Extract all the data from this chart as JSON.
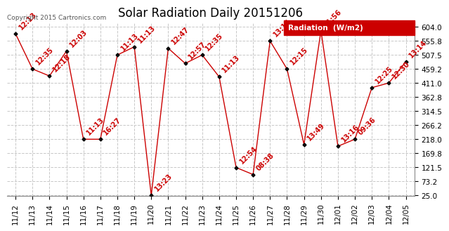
{
  "title": "Solar Radiation Daily 20151206",
  "copyright": "Copyright 2015 Cartronics.com",
  "background_color": "#ffffff",
  "plot_bg_color": "#ffffff",
  "grid_color": "#c8c8c8",
  "line_color": "#cc0000",
  "marker_color": "#000000",
  "legend_bg": "#cc0000",
  "legend_text": "Radiation  (W/m2)",
  "ylim_min": 25.0,
  "ylim_max": 604.0,
  "yticks": [
    25.0,
    73.2,
    121.5,
    169.8,
    218.0,
    266.2,
    314.5,
    362.8,
    411.0,
    459.2,
    507.5,
    555.8,
    604.0
  ],
  "dates": [
    "11/12",
    "11/13",
    "11/14",
    "11/15",
    "11/16",
    "11/17",
    "11/18",
    "11/19",
    "11/20",
    "11/21",
    "11/22",
    "11/23",
    "11/24",
    "11/25",
    "11/26",
    "11/27",
    "11/28",
    "11/29",
    "11/30",
    "12/01",
    "12/02",
    "12/03",
    "12/04",
    "12/05"
  ],
  "values": [
    580,
    459,
    435,
    520,
    218,
    218,
    507,
    535,
    25,
    530,
    478,
    507,
    432,
    121,
    97,
    555,
    459,
    200,
    590,
    194,
    218,
    395,
    411,
    484
  ],
  "labels": [
    "12:13",
    "12:35",
    "12:18",
    "12:03",
    "11:13",
    "16:27",
    "11:13",
    "11:13",
    "13:23",
    "12:47",
    "12:57",
    "12:35",
    "11:13",
    "12:54",
    "08:38",
    "13:16",
    "12:15",
    "13:49",
    "11:56",
    "13:16",
    "09:36",
    "12:25",
    "12:30",
    "13:14"
  ],
  "label_color": "#cc0000",
  "title_fontsize": 12,
  "tick_fontsize": 7.5,
  "label_fontsize": 7.0,
  "copyright_fontsize": 6.5
}
